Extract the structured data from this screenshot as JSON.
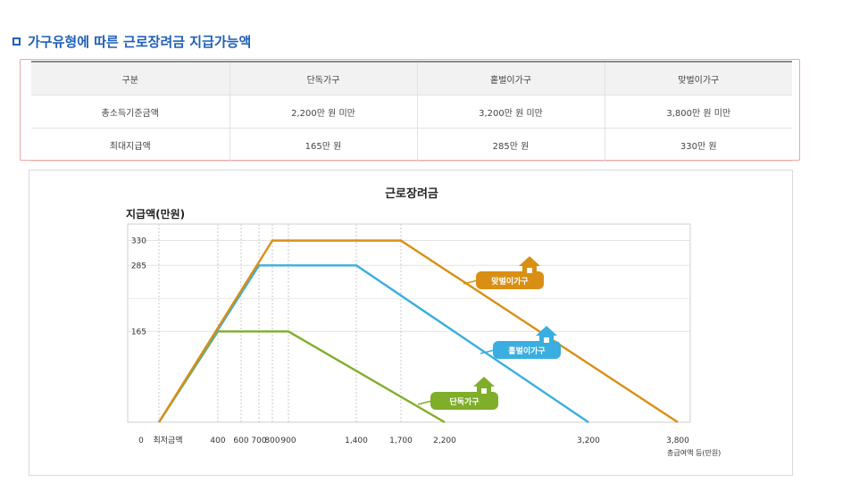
{
  "section": {
    "title": "가구유형에 따른 근로장려금 지급가능액"
  },
  "table": {
    "headers": [
      "구분",
      "단독가구",
      "홑벌이가구",
      "맞벌이가구"
    ],
    "rows": [
      [
        "총소득기준금액",
        "2,200만 원 미만",
        "3,200만 원 미만",
        "3,800만 원 미만"
      ],
      [
        "최대지급액",
        "165만 원",
        "285만 원",
        "330만 원"
      ]
    ]
  },
  "chart_data": {
    "type": "line",
    "title": "근로장려금",
    "ylabel": "지급액(만원)",
    "xlabel": "총급여액 등(만원)",
    "x_ticks": [
      {
        "value": 0,
        "label": "0"
      },
      {
        "value": 150,
        "label": "최저금액"
      },
      {
        "value": 400,
        "label": "400"
      },
      {
        "value": 600,
        "label": "600"
      },
      {
        "value": 700,
        "label": "700"
      },
      {
        "value": 800,
        "label": "800"
      },
      {
        "value": 900,
        "label": "900"
      },
      {
        "value": 1400,
        "label": "1,400"
      },
      {
        "value": 1700,
        "label": "1,700"
      },
      {
        "value": 2200,
        "label": "2,200"
      },
      {
        "value": 3200,
        "label": "3,200"
      },
      {
        "value": 3800,
        "label": "3,800"
      }
    ],
    "y_ticks": [
      {
        "value": 165,
        "label": "165"
      },
      {
        "value": 285,
        "label": "285"
      },
      {
        "value": 330,
        "label": "330"
      }
    ],
    "ylim": [
      0,
      360
    ],
    "series": [
      {
        "name": "단독가구",
        "color": "#7fae2a",
        "points": [
          [
            150,
            0
          ],
          [
            400,
            165
          ],
          [
            900,
            165
          ],
          [
            2200,
            0
          ]
        ]
      },
      {
        "name": "홑벌이가구",
        "color": "#3aaee0",
        "points": [
          [
            150,
            0
          ],
          [
            700,
            285
          ],
          [
            1400,
            285
          ],
          [
            3200,
            0
          ]
        ]
      },
      {
        "name": "맞벌이가구",
        "color": "#d98f14",
        "points": [
          [
            150,
            0
          ],
          [
            800,
            330
          ],
          [
            1700,
            330
          ],
          [
            3800,
            0
          ]
        ]
      }
    ]
  }
}
